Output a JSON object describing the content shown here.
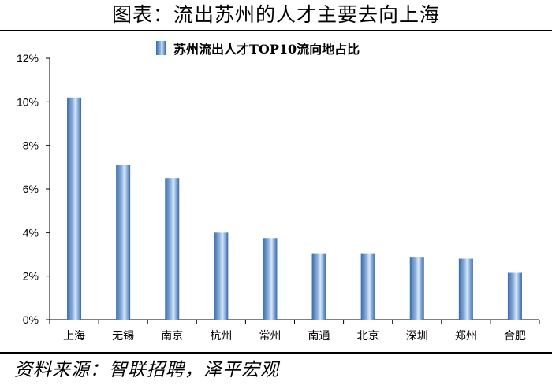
{
  "figure_title": "图表：流出苏州的人才主要去向上海",
  "footer": "资料来源：智联招聘，泽平宏观",
  "colors": {
    "bar_dark": "#3d6aa6",
    "bar_light": "#dbe8f6",
    "axis": "#000000"
  },
  "chart_data": {
    "type": "bar",
    "title": "",
    "xlabel": "",
    "ylabel": "",
    "categories": [
      "上海",
      "无锡",
      "南京",
      "杭州",
      "常州",
      "南通",
      "北京",
      "深圳",
      "郑州",
      "合肥"
    ],
    "series": [
      {
        "name": "苏州流出人才TOP10流向地占比",
        "values": [
          10.2,
          7.1,
          6.5,
          4.0,
          3.75,
          3.05,
          3.05,
          2.85,
          2.8,
          2.15
        ]
      }
    ],
    "ylim": [
      0,
      12
    ],
    "yticks": [
      0,
      2,
      4,
      6,
      8,
      10,
      12
    ],
    "ytick_labels": [
      "0%",
      "2%",
      "4%",
      "6%",
      "8%",
      "10%",
      "12%"
    ],
    "legend_position": "top-center",
    "grid": false
  }
}
